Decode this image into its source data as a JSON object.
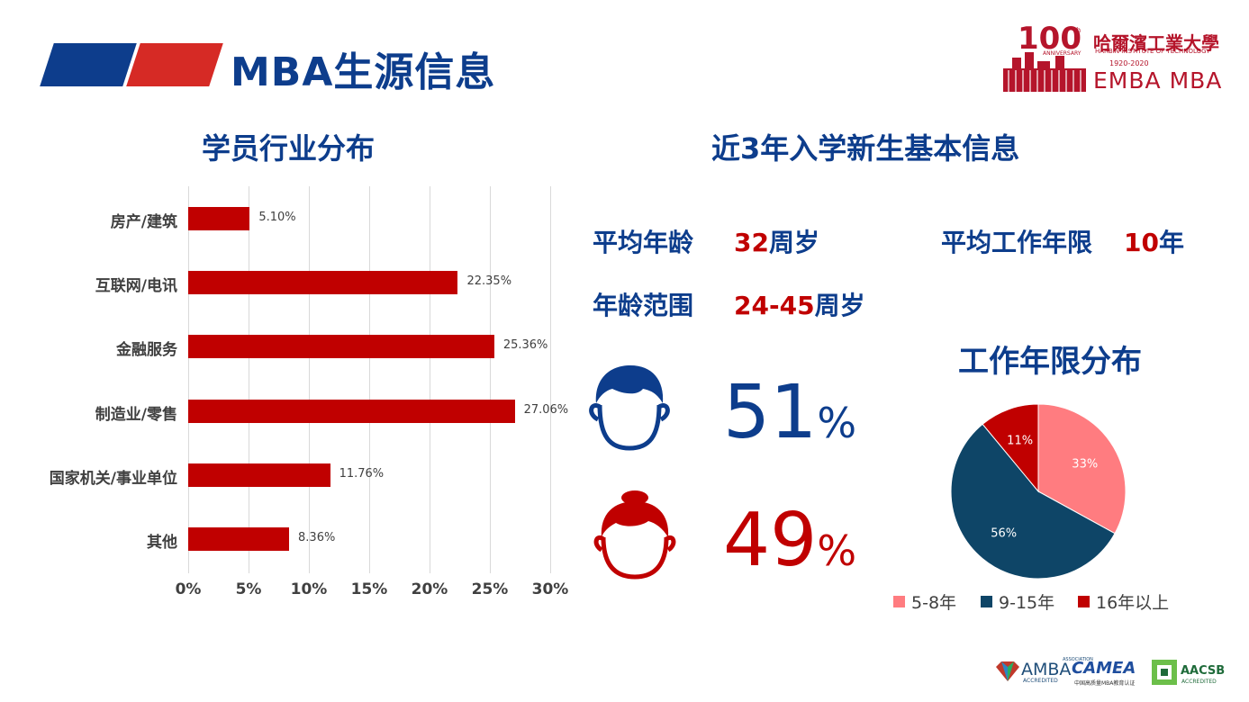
{
  "header": {
    "title": "MBA生源信息",
    "logo": {
      "anniversary_num": "100",
      "anniversary_suffix": "th",
      "anniversary_word": "ANNIVERSARY",
      "university_cn": "哈爾濱工業大學",
      "university_en": "HARBIN INSTITUTE OF TECHNOLOGY",
      "years": "1920-2020",
      "programs": "EMBA MBA"
    }
  },
  "industry": {
    "title": "学员行业分布",
    "chart_data": {
      "type": "bar",
      "orientation": "horizontal",
      "categories": [
        "房产/建筑",
        "互联网/电讯",
        "金融服务",
        "制造业/零售",
        "国家机关/事业单位",
        "其他"
      ],
      "values": [
        5.1,
        22.35,
        25.36,
        27.06,
        11.76,
        8.36
      ],
      "value_labels": [
        "5.10%",
        "22.35%",
        "25.36%",
        "27.06%",
        "11.76%",
        "8.36%"
      ],
      "xlim": [
        0,
        30
      ],
      "x_ticks": [
        "0%",
        "5%",
        "10%",
        "15%",
        "20%",
        "25%",
        "30%"
      ],
      "grid": true,
      "color": "#c00000"
    }
  },
  "students": {
    "title": "近3年入学新生基本信息",
    "avg_age_label": "平均年龄",
    "avg_age_value": "32",
    "avg_age_unit": "周岁",
    "age_range_label": "年龄范围",
    "age_range_value": "24-45",
    "age_range_unit": "周岁",
    "avg_work_label": "平均工作年限",
    "avg_work_value": "10",
    "avg_work_unit": "年",
    "male_percent": "51",
    "female_percent": "49",
    "percent_sign": "%",
    "male_color": "#0d3d8c",
    "female_color": "#c00000"
  },
  "work_years": {
    "title": "工作年限分布",
    "chart_data": {
      "type": "pie",
      "categories": [
        "5-8年",
        "9-15年",
        "16年以上"
      ],
      "values": [
        33,
        56,
        11
      ],
      "value_labels": [
        "33%",
        "56%",
        "11%"
      ],
      "colors": [
        "#ff7c80",
        "#0e4567",
        "#c00000"
      ],
      "legend": "bottom"
    }
  },
  "accreditations": {
    "amba": "AMBA",
    "amba_small": "ASSOCIATION",
    "amba_acc": "ACCREDITED",
    "camea": "CAMEA",
    "camea_sub": "中国高质量MBA教育认证",
    "aacsb": "AACSB",
    "aacsb_acc": "ACCREDITED"
  }
}
